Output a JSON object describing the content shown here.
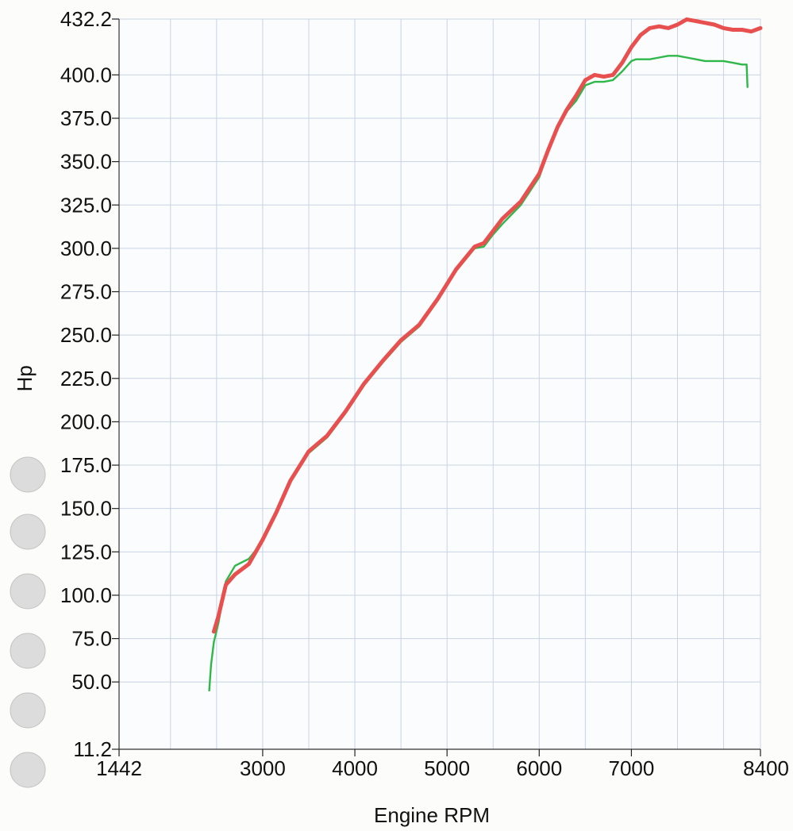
{
  "chart_data": {
    "type": "line",
    "title": "",
    "xlabel": "Engine RPM",
    "ylabel": "Hp",
    "xlim": [
      1442,
      8400
    ],
    "ylim": [
      11.2,
      432.2
    ],
    "x_ticks": [
      {
        "value": 1442,
        "label": "1442"
      },
      {
        "value": 3000,
        "label": "3000"
      },
      {
        "value": 4000,
        "label": "4000"
      },
      {
        "value": 5000,
        "label": "5000"
      },
      {
        "value": 6000,
        "label": "6000"
      },
      {
        "value": 7000,
        "label": "7000"
      },
      {
        "value": 8400,
        "label": "8400"
      }
    ],
    "y_ticks": [
      {
        "value": 11.2,
        "label": "11.2"
      },
      {
        "value": 50,
        "label": "50.0"
      },
      {
        "value": 75,
        "label": "75.0"
      },
      {
        "value": 100,
        "label": "100.0"
      },
      {
        "value": 125,
        "label": "125.0"
      },
      {
        "value": 150,
        "label": "150.0"
      },
      {
        "value": 175,
        "label": "175.0"
      },
      {
        "value": 200,
        "label": "200.0"
      },
      {
        "value": 225,
        "label": "225.0"
      },
      {
        "value": 250,
        "label": "250.0"
      },
      {
        "value": 275,
        "label": "275.0"
      },
      {
        "value": 300,
        "label": "300.0"
      },
      {
        "value": 325,
        "label": "325.0"
      },
      {
        "value": 350,
        "label": "350.0"
      },
      {
        "value": 375,
        "label": "375.0"
      },
      {
        "value": 400,
        "label": "400.0"
      },
      {
        "value": 432.2,
        "label": "432.2"
      }
    ],
    "grid": true,
    "legend": "none",
    "series": [
      {
        "color": "#e8504f",
        "x": [
          2470,
          2520,
          2600,
          2700,
          2850,
          3000,
          3150,
          3300,
          3500,
          3700,
          3900,
          4100,
          4300,
          4500,
          4700,
          4900,
          5100,
          5300,
          5400,
          5500,
          5600,
          5800,
          6000,
          6100,
          6200,
          6300,
          6400,
          6500,
          6600,
          6700,
          6800,
          6900,
          7000,
          7100,
          7200,
          7300,
          7400,
          7500,
          7600,
          7700,
          7800,
          7900,
          8000,
          8100,
          8200,
          8300,
          8400
        ],
        "y": [
          79,
          88,
          106,
          112,
          118,
          132,
          148,
          166,
          183,
          192,
          206,
          222,
          235,
          247,
          256,
          271,
          288,
          301,
          303,
          310,
          317,
          327,
          343,
          357,
          370,
          380,
          388,
          397,
          400,
          399,
          400,
          407,
          416,
          423,
          427,
          428,
          427,
          429,
          432,
          431,
          430,
          429,
          427,
          426,
          426,
          425,
          427
        ]
      },
      {
        "color": "#2fb84a",
        "x": [
          2420,
          2440,
          2470,
          2520,
          2600,
          2700,
          2850,
          3000,
          3150,
          3300,
          3500,
          3700,
          3900,
          4100,
          4300,
          4500,
          4700,
          4900,
          5100,
          5300,
          5400,
          5500,
          5600,
          5800,
          6000,
          6100,
          6200,
          6300,
          6400,
          6500,
          6600,
          6700,
          6800,
          6900,
          7000,
          7050,
          7100,
          7200,
          7300,
          7400,
          7500,
          7600,
          7700,
          7800,
          7900,
          8000,
          8100,
          8200,
          8250,
          8260
        ],
        "y": [
          45,
          60,
          73,
          84,
          108,
          117,
          121,
          131,
          147,
          165,
          182,
          191,
          205,
          221,
          234,
          246,
          255,
          270,
          287,
          300,
          301,
          308,
          314,
          325,
          341,
          356,
          369,
          379,
          385,
          394,
          396,
          396,
          397,
          402,
          408,
          409,
          409,
          409,
          410,
          411,
          411,
          410,
          409,
          408,
          408,
          408,
          407,
          406,
          406,
          393
        ]
      }
    ]
  }
}
